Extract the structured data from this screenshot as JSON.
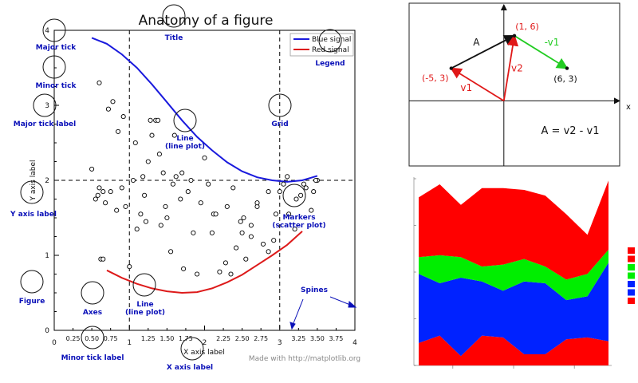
{
  "chart_data": [
    {
      "type": "line",
      "title": "Anatomy of a figure",
      "xlabel": "X axis label",
      "ylabel": "Y axis label",
      "xlim": [
        0,
        4
      ],
      "ylim": [
        0,
        4
      ],
      "grid": true,
      "legend_position": "top-right",
      "x_major_ticks": [
        0,
        1,
        2,
        3,
        4
      ],
      "y_major_ticks": [
        0,
        1,
        2,
        3,
        4
      ],
      "x_minor_ticks": [
        "0.25",
        "0.50",
        "0.75",
        "1.25",
        "1.50",
        "1.75",
        "2.25",
        "2.50",
        "2.75",
        "3.25",
        "3.50",
        "3.75"
      ],
      "x_minor_values": [
        0.25,
        0.5,
        0.75,
        1.25,
        1.5,
        1.75,
        2.25,
        2.5,
        2.75,
        3.25,
        3.5,
        3.75
      ],
      "series": [
        {
          "name": "Blue signal",
          "color": "#1a1add",
          "x": [
            0.5,
            0.7,
            0.9,
            1.1,
            1.3,
            1.5,
            1.7,
            1.9,
            2.1,
            2.3,
            2.5,
            2.7,
            2.9,
            3.1,
            3.3,
            3.5
          ],
          "y": [
            3.9,
            3.82,
            3.68,
            3.5,
            3.28,
            3.04,
            2.8,
            2.58,
            2.4,
            2.24,
            2.12,
            2.04,
            2.0,
            1.98,
            2.0,
            2.06
          ]
        },
        {
          "name": "Red signal",
          "color": "#dd1a1a",
          "x": [
            0.7,
            0.9,
            1.1,
            1.3,
            1.5,
            1.7,
            1.9,
            2.1,
            2.3,
            2.5,
            2.7,
            2.9,
            3.1,
            3.3
          ],
          "y": [
            0.8,
            0.7,
            0.62,
            0.56,
            0.52,
            0.5,
            0.51,
            0.56,
            0.64,
            0.74,
            0.87,
            1.0,
            1.14,
            1.32
          ]
        }
      ],
      "scatter": {
        "x": [
          0.6,
          0.72,
          0.85,
          0.78,
          0.92,
          0.65,
          0.5,
          0.55,
          0.6,
          0.68,
          0.75,
          0.83,
          0.58,
          0.95,
          1.0,
          0.62,
          1.1,
          1.15,
          1.2,
          1.3,
          1.25,
          1.35,
          1.4,
          1.45,
          1.38,
          1.5,
          1.55,
          1.62,
          1.7,
          1.78,
          1.85,
          1.9,
          1.72,
          1.95,
          2.05,
          2.12,
          2.2,
          2.28,
          2.35,
          2.42,
          2.5,
          2.55,
          2.62,
          2.7,
          2.78,
          2.85,
          2.92,
          3.0,
          3.05,
          3.12,
          3.2,
          3.28,
          3.35,
          3.42,
          3.5,
          1.6,
          2.0,
          2.3,
          2.48,
          1.82,
          2.15,
          1.08,
          1.18,
          1.28,
          1.42,
          1.58,
          1.68,
          2.62,
          2.7,
          2.38,
          3.1,
          3.22,
          3.32,
          3.45,
          3.48,
          1.05,
          0.9,
          2.95,
          2.85,
          2.52,
          0.65,
          1.22,
          1.48,
          2.1
        ],
        "y": [
          3.3,
          2.95,
          2.65,
          3.05,
          2.85,
          1.85,
          2.15,
          1.75,
          1.9,
          1.7,
          1.85,
          1.6,
          1.8,
          1.65,
          0.85,
          0.95,
          1.35,
          1.55,
          1.8,
          2.6,
          2.25,
          2.8,
          2.35,
          2.1,
          2.8,
          1.5,
          1.05,
          2.05,
          2.1,
          1.85,
          1.3,
          0.75,
          0.82,
          1.7,
          1.95,
          1.55,
          0.78,
          0.9,
          0.75,
          1.1,
          1.3,
          0.95,
          1.25,
          1.65,
          1.15,
          1.05,
          1.2,
          1.85,
          1.95,
          1.55,
          1.35,
          1.8,
          1.9,
          1.6,
          2.0,
          2.6,
          2.3,
          1.65,
          1.45,
          2.0,
          1.55,
          2.5,
          2.05,
          2.8,
          1.4,
          1.95,
          1.75,
          1.4,
          1.7,
          1.9,
          2.05,
          1.75,
          1.95,
          1.85,
          2.0,
          2.0,
          1.9,
          1.55,
          1.85,
          1.5,
          0.95,
          1.45,
          1.65,
          1.3
        ]
      },
      "annotations": [
        "Major tick",
        "Minor tick",
        "Major tick label",
        "Y axis label",
        "Figure",
        "Axes",
        "Line\n(line plot)",
        "Line\n(line plot)",
        "Title",
        "Grid",
        "Legend",
        "Markers\n(scatter plot)",
        "Spines",
        "Minor tick label",
        "X axis label"
      ],
      "watermark": "Made with http://matplotlib.org"
    },
    {
      "type": "diagram",
      "points": [
        {
          "label": "(1, 6)",
          "x": 1,
          "y": 6
        },
        {
          "label": "(-5, 3)",
          "x": -5,
          "y": 3
        },
        {
          "label": "(6, 3)",
          "x": 6,
          "y": 3
        }
      ],
      "vectors": [
        {
          "label": "A",
          "from": [
            -5,
            3
          ],
          "to": [
            1,
            6
          ],
          "color": "#111111"
        },
        {
          "label": "v2",
          "from": [
            0,
            0
          ],
          "to": [
            1,
            6
          ],
          "color": "#e01818"
        },
        {
          "label": "v1",
          "from": [
            0,
            0
          ],
          "to": [
            -5,
            3
          ],
          "color": "#e01818"
        },
        {
          "label": "-v1",
          "from": [
            1,
            6
          ],
          "to": [
            6,
            3
          ],
          "color": "#22cc22"
        }
      ],
      "axis_label_x": "x",
      "equation": "A  =  v2 - v1",
      "xlim": [
        -9,
        11
      ],
      "ylim": [
        -6,
        9
      ]
    },
    {
      "type": "area",
      "stacked": true,
      "x": [
        1,
        2,
        3,
        4,
        5,
        6,
        7,
        8,
        9,
        10
      ],
      "ylim": [
        0,
        100
      ],
      "series": [
        {
          "name": "red-bottom",
          "color": "#ff0000",
          "values": [
            12,
            16,
            5,
            16,
            15,
            6,
            6,
            14,
            15,
            13
          ]
        },
        {
          "name": "blue",
          "color": "#0022ff",
          "values": [
            37,
            28,
            42,
            29,
            25,
            39,
            38,
            21,
            22,
            42
          ]
        },
        {
          "name": "green",
          "color": "#00ee00",
          "values": [
            9,
            15,
            11,
            8,
            14,
            12,
            9,
            11,
            12,
            7
          ]
        },
        {
          "name": "red-top",
          "color": "#ff0000",
          "values": [
            32,
            38,
            28,
            42,
            41,
            37,
            38,
            35,
            21,
            37
          ]
        }
      ],
      "legend_colors": [
        "#ff0000",
        "#ff0000",
        "#00ee00",
        "#00ee00",
        "#0022ff",
        "#0022ff",
        "#ff0000"
      ]
    }
  ]
}
